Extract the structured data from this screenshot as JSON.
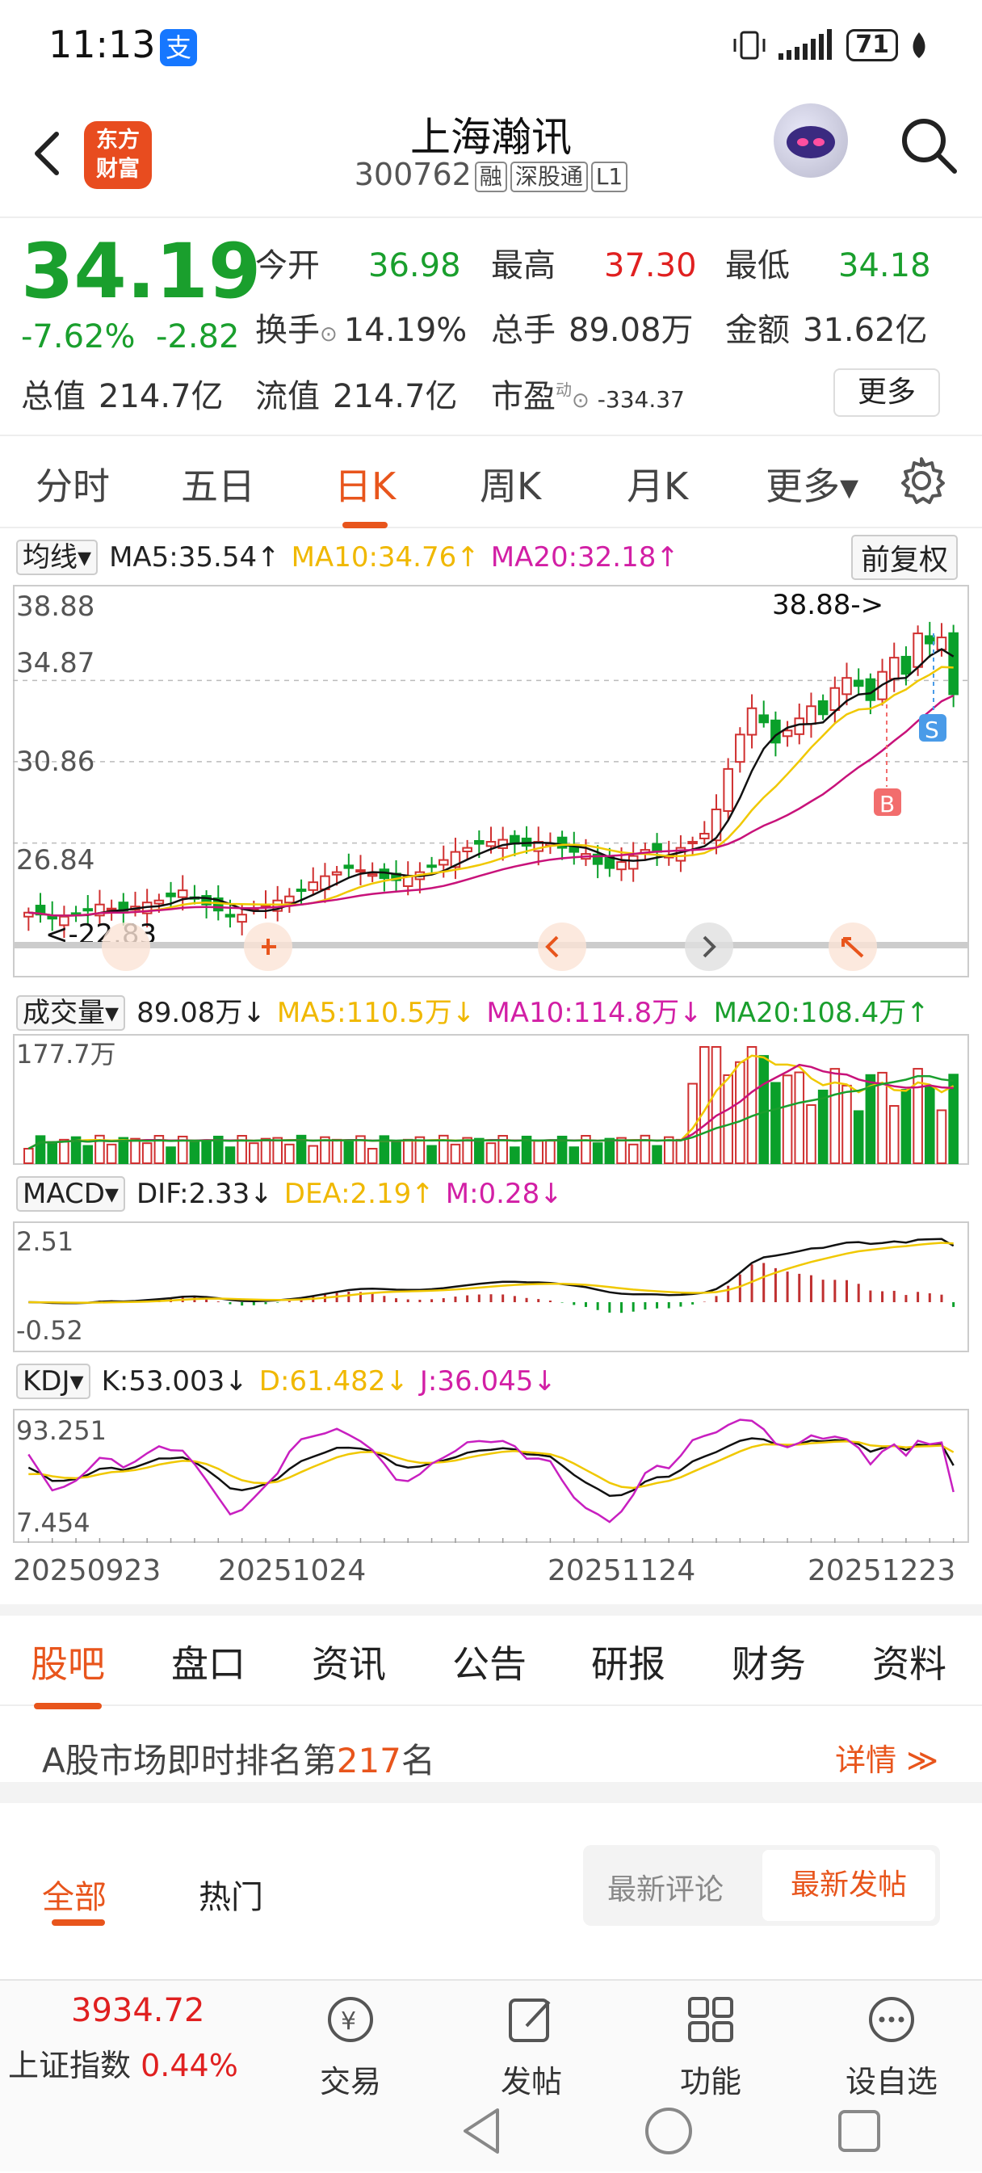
{
  "status": {
    "time": "11:13",
    "alipay": "支",
    "battery": "71"
  },
  "header": {
    "title": "上海瀚讯",
    "code": "300762",
    "tags": [
      "融",
      "深股通",
      "L1"
    ],
    "logo_line1": "东方",
    "logo_line2": "财富"
  },
  "quote": {
    "price": "34.19",
    "change_pct": "-7.62%",
    "change": "-2.82",
    "open_label": "今开",
    "open": "36.98",
    "high_label": "最高",
    "high": "37.30",
    "low_label": "最低",
    "low": "34.18",
    "turnover_label": "换手",
    "turnover": "14.19%",
    "volume_label": "总手",
    "volume": "89.08万",
    "amount_label": "金额",
    "amount": "31.62亿",
    "mcap_label": "总值",
    "mcap": "214.7亿",
    "float_label": "流值",
    "float": "214.7亿",
    "pe_label": "市盈",
    "pe_sup": "动",
    "pe": "-334.37",
    "more": "更多"
  },
  "ktabs": [
    "分时",
    "五日",
    "日K",
    "周K",
    "月K",
    "更多▾"
  ],
  "ma": {
    "sel": "均线▾",
    "ma5": "MA5:35.54↑",
    "ma10": "MA10:34.76↑",
    "ma20": "MA20:32.18↑",
    "adjust": "前复权"
  },
  "vol": {
    "sel": "成交量▾",
    "v": "89.08万↓",
    "ma5": "MA5:110.5万↓",
    "ma10": "MA10:114.8万↓",
    "ma20": "MA20:108.4万↑"
  },
  "macd": {
    "sel": "MACD▾",
    "dif": "DIF:2.33↓",
    "dea": "DEA:2.19↑",
    "m": "M:0.28↓"
  },
  "kdj": {
    "sel": "KDJ▾",
    "k": "K:53.003↓",
    "d": "D:61.482↓",
    "j": "J:36.045↓"
  },
  "dates": [
    "20250923",
    "20251024",
    "20251124",
    "20251223"
  ],
  "btabs": [
    "股吧",
    "盘口",
    "资讯",
    "公告",
    "研报",
    "财务",
    "资料"
  ],
  "rank": {
    "prefix": "A股市场即时排名第",
    "num": "217",
    "suffix": "名",
    "detail": "详情 ≫"
  },
  "feed": {
    "tab_all": "全部",
    "tab_hot": "热门",
    "latest_comment": "最新评论",
    "latest_post": "最新发帖"
  },
  "bottom": {
    "index_value": "3934.72",
    "index_name": "上证指数",
    "index_pct": "0.44%",
    "trade": "交易",
    "post": "发帖",
    "func": "功能",
    "watch": "设自选"
  },
  "chart_data": [
    {
      "type": "candlestick",
      "title": "日K",
      "ylim": [
        22.83,
        38.88
      ],
      "yticks": [
        "38.88",
        "34.87",
        "30.86",
        "26.84"
      ],
      "annotations": [
        "38.88->",
        "<-22.83"
      ],
      "markers": [
        "B",
        "S"
      ],
      "close_last": 34.19,
      "high_max": 38.88,
      "low_min": 22.83,
      "closes": [
        23.4,
        23.3,
        23.1,
        23.2,
        23.3,
        23.5,
        23.8,
        23.6,
        23.4,
        23.7,
        23.9,
        24.0,
        24.2,
        24.5,
        24.1,
        23.8,
        23.5,
        23.2,
        23.3,
        23.6,
        23.8,
        24.0,
        24.2,
        24.5,
        24.9,
        25.2,
        25.4,
        25.6,
        25.5,
        25.3,
        25.1,
        25.0,
        25.2,
        25.4,
        25.7,
        26.0,
        26.4,
        26.6,
        26.8,
        26.9,
        27.0,
        26.8,
        26.7,
        26.9,
        26.8,
        26.6,
        26.4,
        26.3,
        25.8,
        25.6,
        25.9,
        26.2,
        26.5,
        26.4,
        26.2,
        26.6,
        26.9,
        27.3,
        28.5,
        30.5,
        32.2,
        33.5,
        32.8,
        31.8,
        32.4,
        33.0,
        33.6,
        33.2,
        34.5,
        35.0,
        34.6,
        33.9,
        35.3,
        36.0,
        35.2,
        37.2,
        36.7,
        37.0,
        34.19
      ]
    },
    {
      "type": "bar",
      "title": "成交量",
      "ymax_label": "177.7万"
    },
    {
      "type": "bar",
      "title": "MACD",
      "yticks": [
        "2.51",
        "-0.52"
      ]
    },
    {
      "type": "line",
      "title": "KDJ",
      "yticks": [
        "93.251",
        "7.454"
      ]
    }
  ]
}
